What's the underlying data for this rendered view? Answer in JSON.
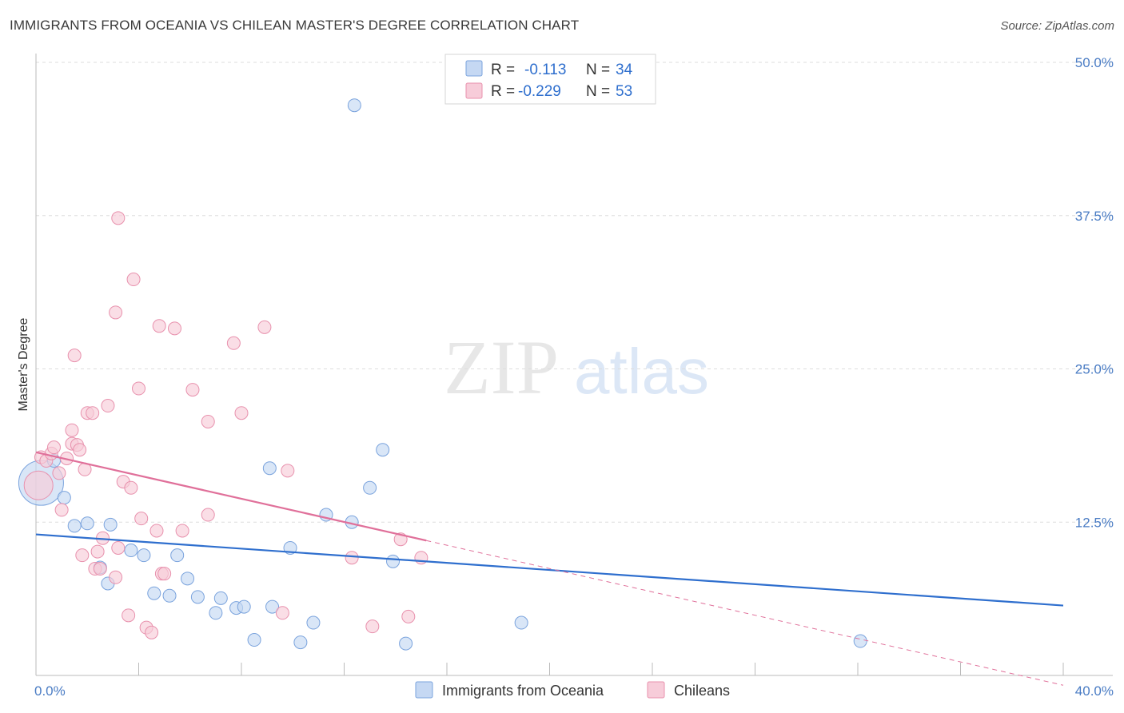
{
  "header": {
    "title": "IMMIGRANTS FROM OCEANIA VS CHILEAN MASTER'S DEGREE CORRELATION CHART",
    "source": "Source: ZipAtlas.com"
  },
  "watermark": {
    "zip": "ZIP",
    "atlas": "atlas"
  },
  "colors": {
    "blue_fill": "#c5d8f3",
    "blue_stroke": "#7aa3dd",
    "blue_line": "#2f6fce",
    "pink_fill": "#f7ccd9",
    "pink_stroke": "#e891ad",
    "pink_line": "#e0709a",
    "tick_label": "#4a7cc4",
    "grid": "#dddddd"
  },
  "legend": {
    "r_label": "R =",
    "n_label": "N =",
    "rows": [
      {
        "r": "-0.113",
        "n": "34"
      },
      {
        "r": "-0.229",
        "n": "53"
      }
    ]
  },
  "chart_data": {
    "type": "scatter",
    "title": "IMMIGRANTS FROM OCEANIA VS CHILEAN MASTER'S DEGREE CORRELATION CHART",
    "xlabel": "",
    "ylabel": "Master's Degree",
    "xlim": [
      0,
      40
    ],
    "ylim": [
      0,
      50
    ],
    "x_tick_labels": [
      "0.0%",
      "40.0%"
    ],
    "y_ticks": [
      12.5,
      25.0,
      37.5,
      50.0
    ],
    "y_tick_labels": [
      "12.5%",
      "25.0%",
      "37.5%",
      "50.0%"
    ],
    "legend_position": "top-center",
    "series": [
      {
        "name": "Immigrants from Oceania",
        "color": "blue",
        "r": -0.113,
        "n": 34,
        "trend": {
          "x0": 0,
          "y0": 11.5,
          "x1": 40,
          "y1": 5.7,
          "dashed_to": null
        },
        "points": [
          [
            0.2,
            15.7,
            28
          ],
          [
            0.7,
            17.5,
            8
          ],
          [
            1.1,
            14.5,
            8
          ],
          [
            1.5,
            12.2,
            8
          ],
          [
            2.0,
            12.4,
            8
          ],
          [
            2.5,
            8.8,
            8
          ],
          [
            2.8,
            7.5,
            8
          ],
          [
            2.9,
            12.3,
            8
          ],
          [
            3.7,
            10.2,
            8
          ],
          [
            4.2,
            9.8,
            8
          ],
          [
            4.6,
            6.7,
            8
          ],
          [
            5.2,
            6.5,
            8
          ],
          [
            5.5,
            9.8,
            8
          ],
          [
            5.9,
            7.9,
            8
          ],
          [
            6.3,
            6.4,
            8
          ],
          [
            7.0,
            5.1,
            8
          ],
          [
            7.2,
            6.3,
            8
          ],
          [
            7.8,
            5.5,
            8
          ],
          [
            8.1,
            5.6,
            8
          ],
          [
            8.5,
            2.9,
            8
          ],
          [
            9.1,
            16.9,
            8
          ],
          [
            9.2,
            5.6,
            8
          ],
          [
            9.9,
            10.4,
            8
          ],
          [
            10.3,
            2.7,
            8
          ],
          [
            10.8,
            4.3,
            8
          ],
          [
            11.3,
            13.1,
            8
          ],
          [
            12.3,
            12.5,
            8
          ],
          [
            12.4,
            46.5,
            8
          ],
          [
            13.0,
            15.3,
            8
          ],
          [
            13.5,
            18.4,
            8
          ],
          [
            13.9,
            9.3,
            8
          ],
          [
            14.4,
            2.6,
            8
          ],
          [
            18.9,
            4.3,
            8
          ],
          [
            32.1,
            2.8,
            8
          ]
        ]
      },
      {
        "name": "Chileans",
        "color": "pink",
        "r": -0.229,
        "n": 53,
        "trend": {
          "x0": 0,
          "y0": 18.2,
          "x1": 15.2,
          "y1": 11.0,
          "dashed_to": {
            "x": 40,
            "y": -0.8
          }
        },
        "points": [
          [
            0.1,
            15.5,
            18
          ],
          [
            0.2,
            17.8,
            8
          ],
          [
            0.4,
            17.5,
            8
          ],
          [
            0.6,
            18.1,
            8
          ],
          [
            0.7,
            18.6,
            8
          ],
          [
            0.9,
            16.5,
            8
          ],
          [
            1.0,
            13.5,
            8
          ],
          [
            1.2,
            17.7,
            8
          ],
          [
            1.4,
            18.9,
            8
          ],
          [
            1.4,
            20.0,
            8
          ],
          [
            1.5,
            26.1,
            8
          ],
          [
            1.6,
            18.8,
            8
          ],
          [
            1.7,
            18.4,
            8
          ],
          [
            1.8,
            9.8,
            8
          ],
          [
            1.9,
            16.8,
            8
          ],
          [
            2.0,
            21.4,
            8
          ],
          [
            2.2,
            21.4,
            8
          ],
          [
            2.3,
            8.7,
            8
          ],
          [
            2.4,
            10.1,
            8
          ],
          [
            2.5,
            8.7,
            8
          ],
          [
            2.6,
            11.2,
            8
          ],
          [
            2.8,
            22.0,
            8
          ],
          [
            3.1,
            29.6,
            8
          ],
          [
            3.1,
            8.0,
            8
          ],
          [
            3.2,
            37.3,
            8
          ],
          [
            3.2,
            10.4,
            8
          ],
          [
            3.4,
            15.8,
            8
          ],
          [
            3.6,
            4.9,
            8
          ],
          [
            3.7,
            15.3,
            8
          ],
          [
            3.8,
            32.3,
            8
          ],
          [
            4.0,
            23.4,
            8
          ],
          [
            4.1,
            12.8,
            8
          ],
          [
            4.3,
            3.9,
            8
          ],
          [
            4.5,
            3.5,
            8
          ],
          [
            4.7,
            11.8,
            8
          ],
          [
            4.8,
            28.5,
            8
          ],
          [
            4.9,
            8.3,
            8
          ],
          [
            5.0,
            8.3,
            8
          ],
          [
            5.4,
            28.3,
            8
          ],
          [
            5.7,
            11.8,
            8
          ],
          [
            6.1,
            23.3,
            8
          ],
          [
            6.7,
            20.7,
            8
          ],
          [
            6.7,
            13.1,
            8
          ],
          [
            7.7,
            27.1,
            8
          ],
          [
            8.0,
            21.4,
            8
          ],
          [
            8.9,
            28.4,
            8
          ],
          [
            9.6,
            5.1,
            8
          ],
          [
            9.8,
            16.7,
            8
          ],
          [
            12.3,
            9.6,
            8
          ],
          [
            13.1,
            4.0,
            8
          ],
          [
            14.2,
            11.1,
            8
          ],
          [
            14.5,
            4.8,
            8
          ],
          [
            15.0,
            9.6,
            8
          ]
        ]
      }
    ]
  }
}
